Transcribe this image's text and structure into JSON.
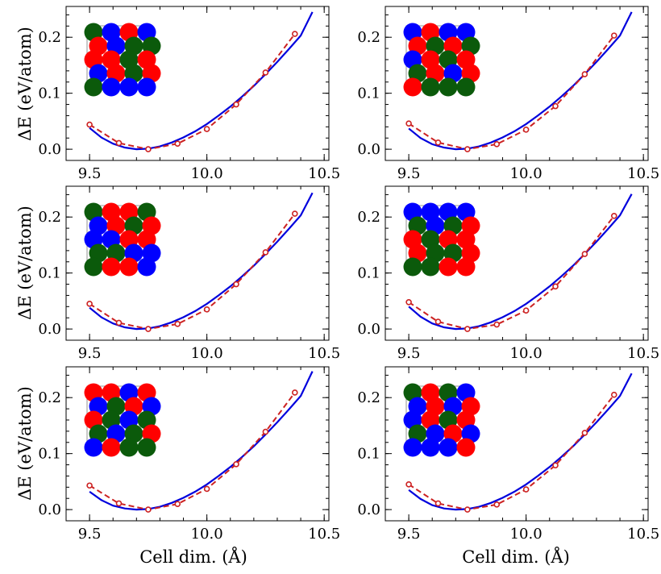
{
  "figure": {
    "xlabel": "Cell dim. (Å)",
    "ylabel": "ΔE (eV/atom)"
  },
  "colors": {
    "fit": "#0000dd",
    "dft": "#cc2222",
    "atom_red": "#ff0000",
    "atom_blue": "#0000ff",
    "atom_green": "#0b5a0b"
  },
  "chart_data": [
    {
      "type": "line",
      "xlim": [
        9.4,
        10.52
      ],
      "ylim": [
        -0.02,
        0.255
      ],
      "xticks": [
        9.5,
        10.0,
        10.5
      ],
      "xtick_labels": [
        "9.5",
        "10.0",
        "10.5"
      ],
      "yticks": [
        0.0,
        0.1,
        0.2
      ],
      "ytick_labels": [
        "0.0",
        "0.1",
        "0.2"
      ],
      "grid": false,
      "series": [
        {
          "style": "solid",
          "x": [
            9.5,
            9.55,
            9.6,
            9.65,
            9.7,
            9.75,
            9.8,
            9.85,
            9.9,
            9.95,
            10.0,
            10.05,
            10.1,
            10.15,
            10.2,
            10.25,
            10.3,
            10.35,
            10.4,
            10.45
          ],
          "y": [
            0.038,
            0.021,
            0.01,
            0.003,
            0.0,
            0.001,
            0.005,
            0.012,
            0.021,
            0.032,
            0.045,
            0.06,
            0.076,
            0.094,
            0.113,
            0.134,
            0.156,
            0.179,
            0.203,
            0.245
          ]
        },
        {
          "style": "dashed-markers",
          "x": [
            9.5,
            9.625,
            9.75,
            9.875,
            10.0,
            10.125,
            10.25,
            10.375
          ],
          "y": [
            0.044,
            0.011,
            0.0,
            0.01,
            0.036,
            0.08,
            0.137,
            0.206
          ]
        }
      ],
      "inset_atoms": [
        [
          "green",
          "blue",
          "red",
          "blue"
        ],
        [
          "red",
          "blue",
          "green",
          "green"
        ],
        [
          "red",
          "red",
          "green",
          "red"
        ],
        [
          "blue",
          "red",
          "green",
          "red"
        ],
        [
          "green",
          "blue",
          "blue",
          "blue"
        ]
      ]
    },
    {
      "type": "line",
      "xlim": [
        9.4,
        10.52
      ],
      "ylim": [
        -0.02,
        0.255
      ],
      "xticks": [
        9.5,
        10.0,
        10.5
      ],
      "xtick_labels": [
        "9.5",
        "10.0",
        "10.5"
      ],
      "yticks": [
        0.0,
        0.1,
        0.2
      ],
      "ytick_labels": [
        "0.0",
        "0.1",
        "0.2"
      ],
      "grid": false,
      "series": [
        {
          "style": "solid",
          "x": [
            9.5,
            9.55,
            9.6,
            9.65,
            9.7,
            9.75,
            9.8,
            9.85,
            9.9,
            9.95,
            10.0,
            10.05,
            10.1,
            10.15,
            10.2,
            10.25,
            10.3,
            10.35,
            10.4,
            10.45
          ],
          "y": [
            0.037,
            0.02,
            0.009,
            0.003,
            0.0,
            0.001,
            0.005,
            0.012,
            0.021,
            0.032,
            0.045,
            0.06,
            0.076,
            0.094,
            0.113,
            0.134,
            0.156,
            0.179,
            0.203,
            0.245
          ]
        },
        {
          "style": "dashed-markers",
          "x": [
            9.5,
            9.625,
            9.75,
            9.875,
            10.0,
            10.125,
            10.25,
            10.375
          ],
          "y": [
            0.046,
            0.012,
            0.0,
            0.009,
            0.035,
            0.077,
            0.134,
            0.203
          ]
        }
      ],
      "inset_atoms": [
        [
          "blue",
          "red",
          "blue",
          "blue"
        ],
        [
          "red",
          "green",
          "red",
          "green"
        ],
        [
          "blue",
          "red",
          "green",
          "red"
        ],
        [
          "green",
          "red",
          "blue",
          "red"
        ],
        [
          "red",
          "green",
          "green",
          "green"
        ]
      ]
    },
    {
      "type": "line",
      "xlim": [
        9.4,
        10.52
      ],
      "ylim": [
        -0.02,
        0.255
      ],
      "xticks": [
        9.5,
        10.0,
        10.5
      ],
      "xtick_labels": [
        "9.5",
        "10.0",
        "10.5"
      ],
      "yticks": [
        0.0,
        0.1,
        0.2
      ],
      "ytick_labels": [
        "0.0",
        "0.1",
        "0.2"
      ],
      "grid": false,
      "series": [
        {
          "style": "solid",
          "x": [
            9.5,
            9.55,
            9.6,
            9.65,
            9.7,
            9.75,
            9.8,
            9.85,
            9.9,
            9.95,
            10.0,
            10.05,
            10.1,
            10.15,
            10.2,
            10.25,
            10.3,
            10.35,
            10.4,
            10.45
          ],
          "y": [
            0.038,
            0.021,
            0.01,
            0.003,
            0.0,
            0.001,
            0.005,
            0.012,
            0.021,
            0.032,
            0.045,
            0.06,
            0.076,
            0.094,
            0.113,
            0.134,
            0.156,
            0.179,
            0.203,
            0.243
          ]
        },
        {
          "style": "dashed-markers",
          "x": [
            9.5,
            9.625,
            9.75,
            9.875,
            10.0,
            10.125,
            10.25,
            10.375
          ],
          "y": [
            0.045,
            0.011,
            0.0,
            0.009,
            0.035,
            0.08,
            0.137,
            0.206
          ]
        }
      ],
      "inset_atoms": [
        [
          "green",
          "red",
          "red",
          "green"
        ],
        [
          "blue",
          "red",
          "green",
          "red"
        ],
        [
          "blue",
          "blue",
          "red",
          "red"
        ],
        [
          "green",
          "green",
          "blue",
          "blue"
        ],
        [
          "green",
          "red",
          "red",
          "blue"
        ]
      ]
    },
    {
      "type": "line",
      "xlim": [
        9.4,
        10.52
      ],
      "ylim": [
        -0.02,
        0.255
      ],
      "xticks": [
        9.5,
        10.0,
        10.5
      ],
      "xtick_labels": [
        "9.5",
        "10.0",
        "10.5"
      ],
      "yticks": [
        0.0,
        0.1,
        0.2
      ],
      "ytick_labels": [
        "0.0",
        "0.1",
        "0.2"
      ],
      "grid": false,
      "series": [
        {
          "style": "solid",
          "x": [
            9.5,
            9.55,
            9.6,
            9.65,
            9.7,
            9.75,
            9.8,
            9.85,
            9.9,
            9.95,
            10.0,
            10.05,
            10.1,
            10.15,
            10.2,
            10.25,
            10.3,
            10.35,
            10.4,
            10.45
          ],
          "y": [
            0.04,
            0.022,
            0.01,
            0.003,
            0.0,
            0.001,
            0.005,
            0.012,
            0.021,
            0.032,
            0.045,
            0.06,
            0.076,
            0.094,
            0.113,
            0.134,
            0.156,
            0.179,
            0.203,
            0.241
          ]
        },
        {
          "style": "dashed-markers",
          "x": [
            9.5,
            9.625,
            9.75,
            9.875,
            10.0,
            10.125,
            10.25,
            10.375
          ],
          "y": [
            0.048,
            0.013,
            0.0,
            0.008,
            0.033,
            0.076,
            0.134,
            0.202
          ]
        }
      ],
      "inset_atoms": [
        [
          "blue",
          "blue",
          "blue",
          "blue"
        ],
        [
          "green",
          "blue",
          "green",
          "red"
        ],
        [
          "red",
          "green",
          "red",
          "red"
        ],
        [
          "red",
          "green",
          "green",
          "red"
        ],
        [
          "green",
          "green",
          "red",
          "red"
        ]
      ]
    },
    {
      "type": "line",
      "xlim": [
        9.4,
        10.52
      ],
      "ylim": [
        -0.02,
        0.255
      ],
      "xticks": [
        9.5,
        10.0,
        10.5
      ],
      "xtick_labels": [
        "9.5",
        "10.0",
        "10.5"
      ],
      "yticks": [
        0.0,
        0.1,
        0.2
      ],
      "ytick_labels": [
        "0.0",
        "0.1",
        "0.2"
      ],
      "grid": false,
      "series": [
        {
          "style": "solid",
          "x": [
            9.5,
            9.55,
            9.6,
            9.65,
            9.7,
            9.75,
            9.8,
            9.85,
            9.9,
            9.95,
            10.0,
            10.05,
            10.1,
            10.15,
            10.2,
            10.25,
            10.3,
            10.35,
            10.4,
            10.45
          ],
          "y": [
            0.032,
            0.017,
            0.007,
            0.002,
            0.0,
            0.001,
            0.005,
            0.012,
            0.021,
            0.032,
            0.045,
            0.06,
            0.076,
            0.094,
            0.113,
            0.134,
            0.156,
            0.179,
            0.203,
            0.247
          ]
        },
        {
          "style": "dashed-markers",
          "x": [
            9.5,
            9.625,
            9.75,
            9.875,
            10.0,
            10.125,
            10.25,
            10.375
          ],
          "y": [
            0.043,
            0.011,
            0.0,
            0.01,
            0.037,
            0.081,
            0.139,
            0.209
          ]
        }
      ],
      "inset_atoms": [
        [
          "red",
          "red",
          "blue",
          "red"
        ],
        [
          "blue",
          "green",
          "red",
          "blue"
        ],
        [
          "red",
          "green",
          "blue",
          "green"
        ],
        [
          "green",
          "blue",
          "green",
          "red"
        ],
        [
          "blue",
          "red",
          "green",
          "green"
        ]
      ]
    },
    {
      "type": "line",
      "xlim": [
        9.4,
        10.52
      ],
      "ylim": [
        -0.02,
        0.255
      ],
      "xticks": [
        9.5,
        10.0,
        10.5
      ],
      "xtick_labels": [
        "9.5",
        "10.0",
        "10.5"
      ],
      "yticks": [
        0.0,
        0.1,
        0.2
      ],
      "ytick_labels": [
        "0.0",
        "0.1",
        "0.2"
      ],
      "grid": false,
      "series": [
        {
          "style": "solid",
          "x": [
            9.5,
            9.55,
            9.6,
            9.65,
            9.7,
            9.75,
            9.8,
            9.85,
            9.9,
            9.95,
            10.0,
            10.05,
            10.1,
            10.15,
            10.2,
            10.25,
            10.3,
            10.35,
            10.4,
            10.45
          ],
          "y": [
            0.035,
            0.019,
            0.008,
            0.002,
            0.0,
            0.001,
            0.005,
            0.012,
            0.021,
            0.032,
            0.045,
            0.06,
            0.076,
            0.094,
            0.113,
            0.134,
            0.156,
            0.179,
            0.203,
            0.243
          ]
        },
        {
          "style": "dashed-markers",
          "x": [
            9.5,
            9.625,
            9.75,
            9.875,
            10.0,
            10.125,
            10.25,
            10.375
          ],
          "y": [
            0.045,
            0.011,
            0.0,
            0.009,
            0.036,
            0.079,
            0.137,
            0.205
          ]
        }
      ],
      "inset_atoms": [
        [
          "green",
          "red",
          "green",
          "blue"
        ],
        [
          "blue",
          "red",
          "blue",
          "red"
        ],
        [
          "blue",
          "red",
          "green",
          "red"
        ],
        [
          "green",
          "blue",
          "red",
          "blue"
        ],
        [
          "blue",
          "blue",
          "blue",
          "red"
        ]
      ]
    }
  ]
}
